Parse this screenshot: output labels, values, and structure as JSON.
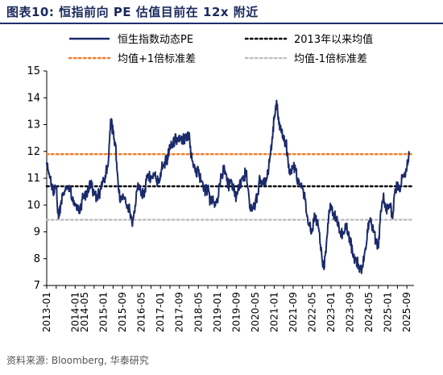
{
  "title": "图表10:  恒指前向 PE 估值目前在 12x 附近",
  "source": "资料来源: Bloomberg, 华泰研究",
  "colors": {
    "pe_line": "#1b2a6b",
    "mean": "#000000",
    "plus1sd": "#f07f2c",
    "minus1sd": "#bfbfbf",
    "title": "#1b2a5e"
  },
  "chart_data": {
    "type": "line",
    "title": "",
    "xlabel": "",
    "ylabel": "",
    "ylim": [
      7,
      15
    ],
    "yticks": [
      7,
      8,
      9,
      10,
      11,
      12,
      13,
      14,
      15
    ],
    "xlim": [
      "2013-01",
      "2025-12"
    ],
    "xticks": [
      "2013-01",
      "2013-05",
      "2013-09",
      "2014-01",
      "2014-05",
      "2014-09",
      "2015-01",
      "2015-05",
      "2015-09",
      "2016-01",
      "2016-05",
      "2016-09",
      "2017-01",
      "2017-05",
      "2017-09",
      "2018-01",
      "2018-05",
      "2018-09",
      "2019-01",
      "2019-05",
      "2019-09",
      "2020-01",
      "2020-05",
      "2020-09",
      "2021-01",
      "2021-05",
      "2021-09",
      "2022-01",
      "2022-05",
      "2022-09",
      "2023-01",
      "2023-05",
      "2023-09",
      "2024-01",
      "2024-05",
      "2024-09",
      "2025-01",
      "2025-05",
      "2025-09"
    ],
    "xtick_labels_shown": [
      "2013-01",
      "2014-01",
      "2014-05",
      "2015-01",
      "2015-09",
      "2016-05",
      "2017-01",
      "2017-09",
      "2018-05",
      "2019-01",
      "2019-09",
      "2020-05",
      "2021-01",
      "2021-09",
      "2022-05",
      "2023-01",
      "2023-09",
      "2024-05",
      "2025-01",
      "2025-09"
    ],
    "legend": {
      "placement": "top",
      "entries": [
        "恒生指数动态PE",
        "2013年以来均值",
        "均值+1倍标准差",
        "均值-1倍标准差"
      ]
    },
    "series": [
      {
        "name": "恒生指数动态PE",
        "style": "solid",
        "x": [
          "2013-01",
          "2013-02",
          "2013-03",
          "2013-04",
          "2013-05",
          "2013-06",
          "2013-07",
          "2013-08",
          "2013-09",
          "2013-10",
          "2013-11",
          "2013-12",
          "2014-01",
          "2014-02",
          "2014-03",
          "2014-04",
          "2014-05",
          "2014-06",
          "2014-07",
          "2014-08",
          "2014-09",
          "2014-10",
          "2014-11",
          "2014-12",
          "2015-01",
          "2015-02",
          "2015-03",
          "2015-04",
          "2015-05",
          "2015-06",
          "2015-07",
          "2015-08",
          "2015-09",
          "2015-10",
          "2015-11",
          "2015-12",
          "2016-01",
          "2016-02",
          "2016-03",
          "2016-04",
          "2016-05",
          "2016-06",
          "2016-07",
          "2016-08",
          "2016-09",
          "2016-10",
          "2016-11",
          "2016-12",
          "2017-01",
          "2017-02",
          "2017-03",
          "2017-04",
          "2017-05",
          "2017-06",
          "2017-07",
          "2017-08",
          "2017-09",
          "2017-10",
          "2017-11",
          "2017-12",
          "2018-01",
          "2018-02",
          "2018-03",
          "2018-04",
          "2018-05",
          "2018-06",
          "2018-07",
          "2018-08",
          "2018-09",
          "2018-10",
          "2018-11",
          "2018-12",
          "2019-01",
          "2019-02",
          "2019-03",
          "2019-04",
          "2019-05",
          "2019-06",
          "2019-07",
          "2019-08",
          "2019-09",
          "2019-10",
          "2019-11",
          "2019-12",
          "2020-01",
          "2020-02",
          "2020-03",
          "2020-04",
          "2020-05",
          "2020-06",
          "2020-07",
          "2020-08",
          "2020-09",
          "2020-10",
          "2020-11",
          "2020-12",
          "2021-01",
          "2021-02",
          "2021-03",
          "2021-04",
          "2021-05",
          "2021-06",
          "2021-07",
          "2021-08",
          "2021-09",
          "2021-10",
          "2021-11",
          "2021-12",
          "2022-01",
          "2022-02",
          "2022-03",
          "2022-04",
          "2022-05",
          "2022-06",
          "2022-07",
          "2022-08",
          "2022-09",
          "2022-10",
          "2022-11",
          "2022-12",
          "2023-01",
          "2023-02",
          "2023-03",
          "2023-04",
          "2023-05",
          "2023-06",
          "2023-07",
          "2023-08",
          "2023-09",
          "2023-10",
          "2023-11",
          "2023-12",
          "2024-01",
          "2024-02",
          "2024-03",
          "2024-04",
          "2024-05",
          "2024-06",
          "2024-07",
          "2024-08",
          "2024-09",
          "2024-10",
          "2024-11",
          "2024-12",
          "2025-01",
          "2025-02",
          "2025-03",
          "2025-04",
          "2025-05",
          "2025-06",
          "2025-07",
          "2025-08",
          "2025-09",
          "2025-10"
        ],
        "values": [
          11.6,
          11.2,
          10.8,
          10.4,
          10.7,
          9.5,
          10.1,
          10.4,
          10.7,
          10.6,
          10.5,
          10.3,
          10.0,
          9.9,
          9.7,
          10.2,
          10.4,
          10.3,
          10.8,
          10.7,
          10.4,
          10.3,
          10.4,
          10.6,
          10.9,
          11.2,
          11.6,
          13.2,
          12.7,
          12.3,
          11.0,
          10.1,
          10.2,
          10.3,
          10.0,
          9.8,
          9.3,
          9.7,
          10.5,
          10.7,
          10.5,
          10.3,
          10.9,
          11.1,
          11.0,
          11.2,
          11.0,
          10.9,
          11.2,
          11.5,
          11.6,
          11.7,
          12.2,
          12.3,
          12.4,
          12.5,
          12.6,
          12.3,
          12.5,
          12.4,
          12.7,
          11.8,
          11.4,
          11.2,
          11.3,
          10.9,
          10.7,
          10.5,
          10.6,
          10.1,
          10.3,
          10.1,
          10.2,
          10.8,
          11.1,
          11.4,
          10.9,
          10.7,
          10.9,
          10.5,
          10.3,
          10.6,
          10.8,
          10.9,
          11.3,
          10.6,
          9.8,
          9.9,
          10.0,
          10.4,
          11.0,
          10.8,
          10.9,
          11.0,
          11.6,
          12.3,
          13.2,
          13.9,
          13.0,
          12.7,
          12.4,
          12.4,
          11.4,
          11.3,
          11.4,
          11.3,
          10.9,
          10.7,
          10.6,
          10.2,
          9.6,
          9.2,
          9.0,
          9.7,
          9.4,
          9.0,
          8.2,
          7.6,
          8.5,
          9.6,
          10.0,
          9.7,
          9.5,
          9.2,
          8.9,
          9.0,
          9.3,
          9.0,
          8.7,
          8.3,
          8.0,
          7.9,
          7.5,
          7.6,
          8.1,
          8.6,
          9.4,
          9.3,
          9.0,
          8.6,
          8.4,
          9.8,
          10.3,
          9.9,
          9.9,
          10.0,
          9.5,
          10.6,
          10.7,
          10.5,
          11.0,
          11.2,
          11.4,
          11.9
        ]
      },
      {
        "name": "2013年以来均值",
        "style": "dotted",
        "constant": 10.7
      },
      {
        "name": "均值+1倍标准差",
        "style": "dotted",
        "constant": 11.9
      },
      {
        "name": "均值-1倍标准差",
        "style": "dotted",
        "constant": 9.45
      }
    ]
  }
}
